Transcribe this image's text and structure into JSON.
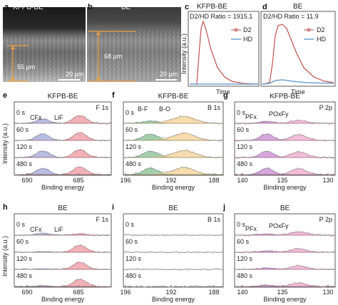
{
  "row1": {
    "a": {
      "letter": "a",
      "title": "KFPB-BE",
      "thickness": "55 μm",
      "scale": "20 μm"
    },
    "b": {
      "letter": "b",
      "title": "BE",
      "thickness": "68 μm",
      "scale": "20 μm"
    },
    "c": {
      "letter": "c",
      "title": "KFPB-BE",
      "ratio": "D2/HD Ratio = 1915.1",
      "legend": [
        "D2",
        "HD"
      ],
      "xlabel": "Time",
      "ylabel": "Intensity (a.u.)"
    },
    "d": {
      "letter": "d",
      "title": "BE",
      "ratio": "D2/HD Ratio = 11.9",
      "legend": [
        "D2",
        "HD"
      ],
      "xlabel": "Time"
    }
  },
  "xps": {
    "ylabel": "Intensity (a.u.)",
    "xlabel": "Binding energy",
    "times": [
      "0 s",
      "60 s",
      "120 s",
      "480 s"
    ],
    "f1s_ticks": [
      "690",
      "685"
    ],
    "b1s_ticks": [
      "196",
      "192",
      "188"
    ],
    "p2p_ticks": [
      "140",
      "135",
      "130"
    ],
    "e": {
      "letter": "e",
      "title": "KFPB-BE",
      "element": "F 1s",
      "peaks": [
        "CFx",
        "LiF"
      ]
    },
    "f": {
      "letter": "f",
      "title": "KFPB-BE",
      "element": "B 1s",
      "peaks": [
        "B-F",
        "B-O"
      ]
    },
    "g": {
      "letter": "g",
      "title": "KFPB-BE",
      "element": "P 2p",
      "peaks": [
        "PFx",
        "POxFy"
      ]
    },
    "h": {
      "letter": "h",
      "title": "BE",
      "element": "F 1s",
      "peaks": [
        "CFx",
        "LiF"
      ]
    },
    "i": {
      "letter": "i",
      "title": "BE",
      "element": "B 1s"
    },
    "j": {
      "letter": "j",
      "title": "BE",
      "element": "P 2p",
      "peaks": [
        "PFx",
        "POxFy"
      ]
    }
  },
  "colors": {
    "d2": "#c0504d",
    "hd": "#6fa3d0",
    "blue": "#7b86c8",
    "red": "#e8727c",
    "green": "#5aa86a",
    "orange": "#f0c070",
    "purple": "#b25fc0",
    "pink": "#e889b8",
    "grey": "#9a9a9a"
  }
}
